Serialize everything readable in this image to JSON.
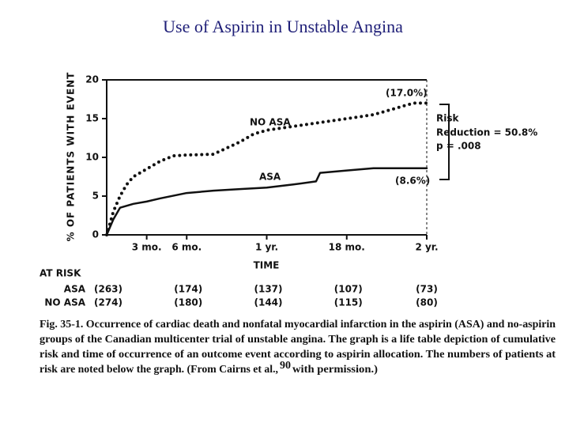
{
  "page_title": "Use of Aspirin in Unstable Angina",
  "chart_data": {
    "type": "line",
    "y_label": "% OF PATIENTS WITH EVENT",
    "x_label": "TIME",
    "xlim": [
      0,
      24
    ],
    "xticks": [
      {
        "value": 3,
        "label": "3 mo."
      },
      {
        "value": 6,
        "label": "6 mo."
      },
      {
        "value": 12,
        "label": "1 yr."
      },
      {
        "value": 18,
        "label": "18 mo."
      },
      {
        "value": 24,
        "label": "2 yr."
      }
    ],
    "ylim": [
      0,
      20
    ],
    "yticks": [
      0,
      5,
      10,
      15,
      20
    ],
    "series": [
      {
        "name": "NO ASA",
        "color": "#111111",
        "style": "dotted",
        "x": [
          0,
          0.5,
          1,
          1.5,
          2,
          3,
          4,
          5,
          6,
          8,
          9,
          10,
          11,
          12,
          14,
          16,
          18,
          20,
          22,
          23,
          24
        ],
        "values": [
          0,
          3,
          5,
          6.5,
          7.5,
          8.5,
          9.5,
          10.2,
          10.3,
          10.4,
          11.2,
          12,
          13,
          13.5,
          14,
          14.5,
          15,
          15.5,
          16.5,
          17,
          17
        ]
      },
      {
        "name": "ASA",
        "color": "#111111",
        "style": "solid",
        "x": [
          0,
          0.5,
          1,
          2,
          3,
          4,
          6,
          8,
          10,
          12,
          14,
          15.7,
          16,
          18,
          20,
          24
        ],
        "values": [
          0,
          2,
          3.5,
          4,
          4.3,
          4.7,
          5.4,
          5.7,
          5.9,
          6.1,
          6.5,
          6.9,
          8,
          8.3,
          8.6,
          8.6
        ]
      }
    ],
    "end_labels": [
      "(17.0%)",
      "(8.6%)"
    ],
    "risk_note": [
      "Risk",
      "Reduction = 50.8%",
      "p = .008"
    ],
    "at_risk": {
      "title": "AT RISK",
      "rows": [
        {
          "name": "ASA",
          "values": [
            "(263)",
            "(174)",
            "(137)",
            "(107)",
            "(73)"
          ]
        },
        {
          "name": "NO ASA",
          "values": [
            "(274)",
            "(180)",
            "(144)",
            "(115)",
            "(80)"
          ]
        }
      ]
    },
    "caption": {
      "lines": [
        "Fig. 35-1. Occurrence of cardiac death and nonfatal myocardial infarction in the aspirin (ASA) and no-aspirin",
        "groups of the Canadian multicenter trial of unstable angina. The graph is a life table depiction of cumulative",
        "risk and time of occurrence of an outcome event according to aspirin allocation. The numbers of patients at",
        "risk are noted below the graph. (From Cairns et al.,"
      ],
      "ref": "90",
      "tail": "with permission.)"
    }
  }
}
